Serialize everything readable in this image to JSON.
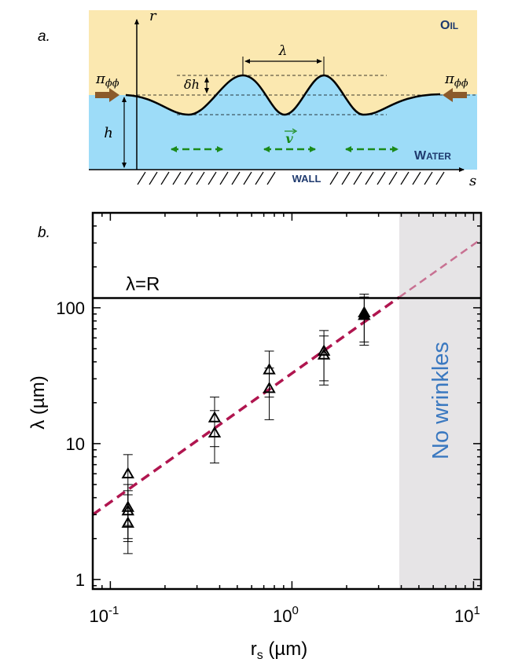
{
  "panel_a": {
    "label": "a.",
    "oil_label_first": "O",
    "oil_label_rest": "IL",
    "water_label_first": "W",
    "water_label_rest": "ATER",
    "wall_label": "WALL",
    "r_axis": "r",
    "s_axis": "s",
    "lambda": "λ",
    "delta_h": "δh",
    "h": "h",
    "pi_left": "π",
    "pi_left_sub": "ϕϕ",
    "pi_right": "π",
    "pi_right_sub": "ϕϕ",
    "velocity": "v",
    "colors": {
      "oil": "#fbe8b0",
      "water": "#9ddcf8",
      "arrow_green": "#1a8a1a",
      "pressure_arrow": "#8b5a2b",
      "label_navy": "#1f3a6e"
    }
  },
  "panel_b": {
    "label": "b.",
    "shaded_region_label": "No wrinkles",
    "reference_line_label": "λ=R",
    "colors": {
      "fit_line": "#b0154f",
      "shade": "#e6e4e6",
      "label_blue": "#3a78c0"
    }
  },
  "chart_data": {
    "type": "scatter",
    "xscale": "log",
    "yscale": "log",
    "xlabel": "r",
    "xlabel_sub": "s",
    "xlabel_unit": " (µm)",
    "ylabel": "λ (µm)",
    "xlim": [
      0.08,
      11
    ],
    "ylim": [
      0.85,
      500
    ],
    "x_ticks": [
      {
        "value": 0.1,
        "base": "10",
        "exp": "-1"
      },
      {
        "value": 1,
        "base": "10",
        "exp": "0"
      },
      {
        "value": 10,
        "base": "10",
        "exp": "1"
      }
    ],
    "y_ticks": [
      {
        "value": 1,
        "label": "1"
      },
      {
        "value": 10,
        "label": "10"
      },
      {
        "value": 100,
        "label": "100"
      }
    ],
    "reference_line_y": 118,
    "fit_line": {
      "from": [
        0.08,
        3.0
      ],
      "to": [
        11,
        320
      ]
    },
    "shaded_x_range": [
      3.9,
      11
    ],
    "series": [
      {
        "name": "open triangles",
        "marker": "open-triangle",
        "points": [
          {
            "x": 0.125,
            "y": 6.0,
            "err_low": 2.5,
            "err_high": 8.3
          },
          {
            "x": 0.125,
            "y": 3.4,
            "err_low": 2.0,
            "err_high": 5.0
          },
          {
            "x": 0.125,
            "y": 3.2,
            "err_low": 1.9,
            "err_high": 4.5
          },
          {
            "x": 0.125,
            "y": 2.6,
            "err_low": 1.55,
            "err_high": 4.2
          },
          {
            "x": 0.375,
            "y": 15.5,
            "err_low": 9.5,
            "err_high": 22
          },
          {
            "x": 0.375,
            "y": 12.0,
            "err_low": 7.2,
            "err_high": 17.5
          },
          {
            "x": 0.75,
            "y": 35,
            "err_low": 22,
            "err_high": 48
          },
          {
            "x": 0.75,
            "y": 25.5,
            "err_low": 15,
            "err_high": 36
          },
          {
            "x": 1.5,
            "y": 48,
            "err_low": 29,
            "err_high": 68
          },
          {
            "x": 1.5,
            "y": 45,
            "err_low": 27,
            "err_high": 62
          }
        ]
      },
      {
        "name": "filled triangles",
        "marker": "filled-triangle",
        "points": [
          {
            "x": 2.5,
            "y": 92,
            "err_low": 56,
            "err_high": 126
          },
          {
            "x": 2.5,
            "y": 88,
            "err_low": 53,
            "err_high": 120
          }
        ]
      }
    ]
  }
}
